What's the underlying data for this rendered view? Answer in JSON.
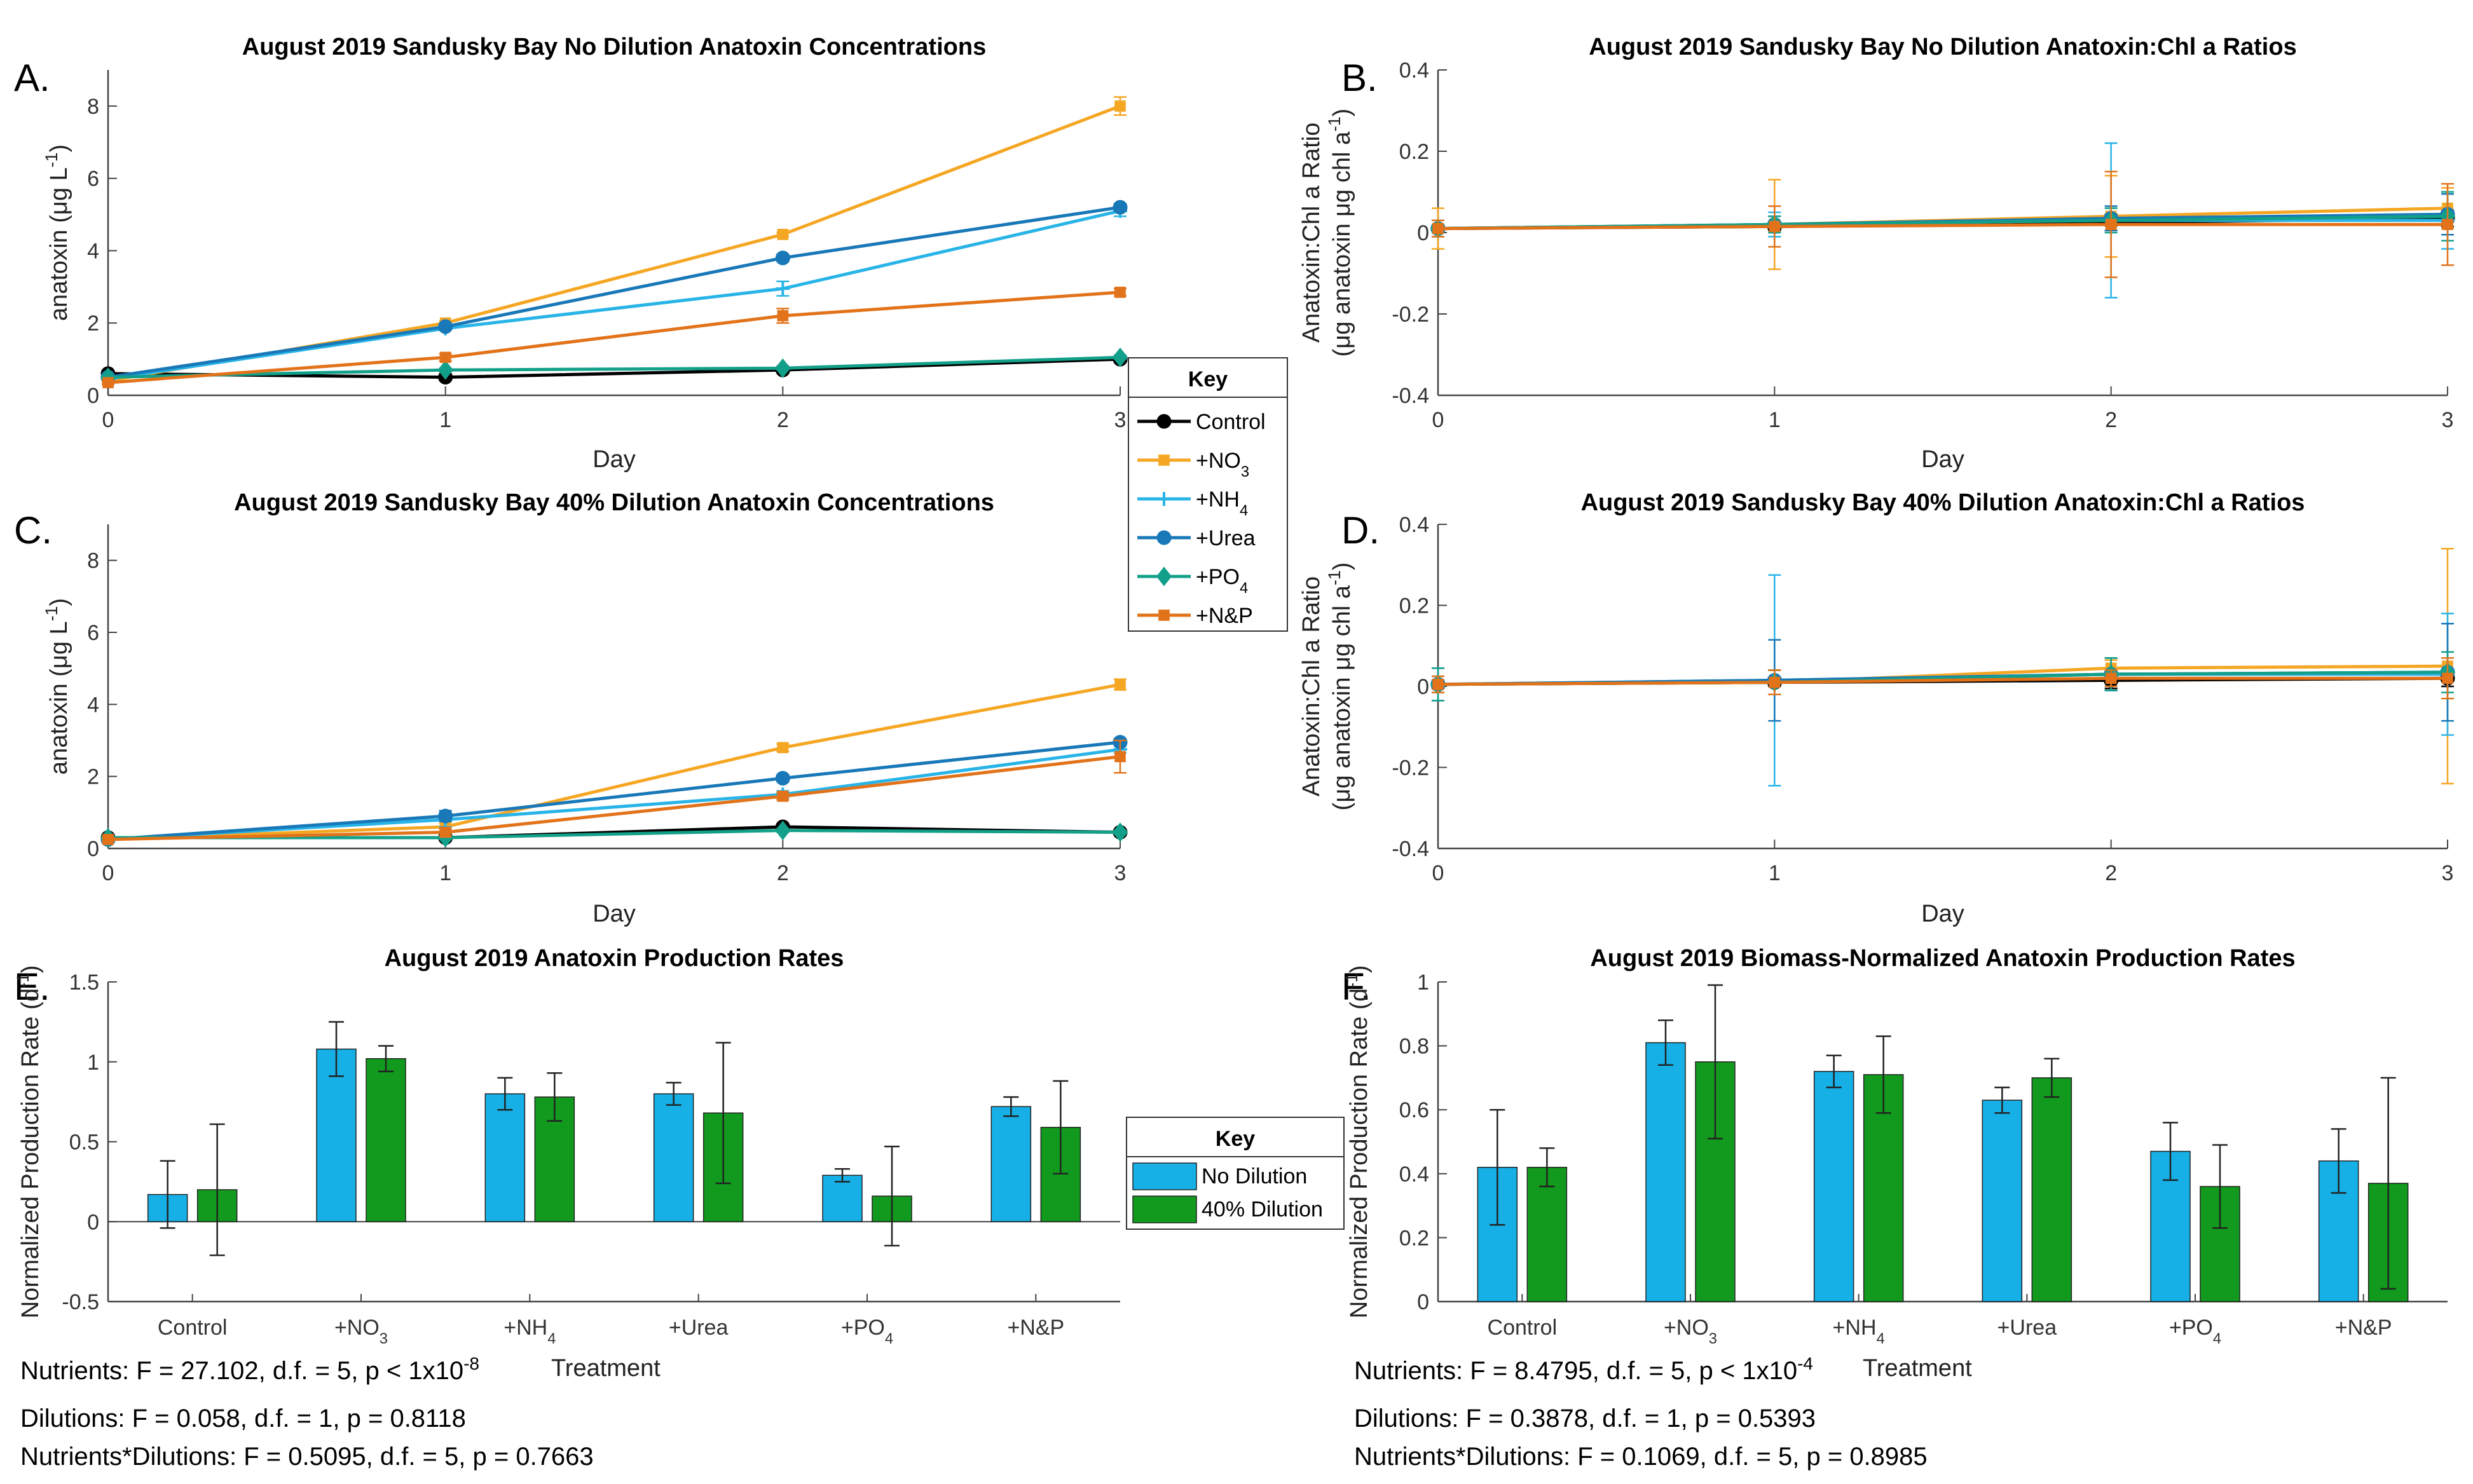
{
  "colors": {
    "Control": "#000000",
    "+NO3": "#f5a623",
    "+NH4": "#29b4e8",
    "+Urea": "#1878b8",
    "+PO4": "#13a08a",
    "+N&P": "#e2731a",
    "no_dilution_bar": "#16b0e6",
    "dilution_bar": "#119a1e"
  },
  "line_legend": {
    "title": "Key",
    "entries": [
      {
        "key": "Control",
        "label": "Control",
        "sub": "",
        "marker": "circle"
      },
      {
        "key": "+NO3",
        "label": "+NO",
        "sub": "3",
        "marker": "square"
      },
      {
        "key": "+NH4",
        "label": "+NH",
        "sub": "4",
        "marker": "plus"
      },
      {
        "key": "+Urea",
        "label": "+Urea",
        "sub": "",
        "marker": "circle"
      },
      {
        "key": "+PO4",
        "label": "+PO",
        "sub": "4",
        "marker": "diamond"
      },
      {
        "key": "+N&P",
        "label": "+N&P",
        "sub": "",
        "marker": "square"
      }
    ]
  },
  "bar_legend": {
    "title": "Key",
    "entries": [
      {
        "key": "no_dilution_bar",
        "label": "No Dilution"
      },
      {
        "key": "dilution_bar",
        "label": "40% Dilution"
      }
    ]
  },
  "chart_data": [
    {
      "id": "A",
      "letter": "A.",
      "type": "line",
      "title": "August 2019 Sandusky Bay No Dilution Anatoxin Concentrations",
      "xlabel": "Day",
      "ylabel": "anatoxin (μg L",
      "ylabel_sup": "-1",
      "ylabel_end": ")",
      "x": [
        0,
        1,
        2,
        3
      ],
      "xlim": [
        0,
        3
      ],
      "ylim": [
        0,
        9
      ],
      "xticks": [
        "0",
        "1",
        "2",
        "3"
      ],
      "yticks": [
        "0",
        "2",
        "4",
        "6",
        "8"
      ],
      "ytick_values": [
        0,
        2,
        4,
        6,
        8
      ],
      "series": [
        {
          "name": "Control",
          "values": [
            0.6,
            0.5,
            0.7,
            1.0
          ],
          "err": [
            0.05,
            0.05,
            0.05,
            0.05
          ]
        },
        {
          "name": "+NO3",
          "values": [
            0.4,
            2.0,
            4.45,
            8.0
          ],
          "err": [
            0.05,
            0.05,
            0.05,
            0.25
          ]
        },
        {
          "name": "+NH4",
          "values": [
            0.45,
            1.85,
            2.95,
            5.1
          ],
          "err": [
            0.05,
            0.05,
            0.2,
            0.15
          ]
        },
        {
          "name": "+Urea",
          "values": [
            0.5,
            1.9,
            3.8,
            5.2
          ],
          "err": [
            0.05,
            0.05,
            0.1,
            0.1
          ]
        },
        {
          "name": "+PO4",
          "values": [
            0.5,
            0.7,
            0.75,
            1.05
          ],
          "err": [
            0.05,
            0.05,
            0.05,
            0.05
          ]
        },
        {
          "name": "+N&P",
          "values": [
            0.35,
            1.05,
            2.2,
            2.85
          ],
          "err": [
            0.05,
            0.1,
            0.2,
            0.1
          ]
        }
      ]
    },
    {
      "id": "B",
      "letter": "B.",
      "type": "line",
      "title": "August 2019 Sandusky Bay No Dilution Anatoxin:Chl a Ratios",
      "xlabel": "Day",
      "ylabel": "Anatoxin:Chl a Ratio",
      "ylabel2": "(μg anatoxin μg chl a",
      "ylabel2_sup": "-1",
      "ylabel2_end": ")",
      "x": [
        0,
        1,
        2,
        3
      ],
      "xlim": [
        0,
        3
      ],
      "ylim": [
        -0.4,
        0.4
      ],
      "xticks": [
        "0",
        "1",
        "2",
        "3"
      ],
      "yticks": [
        "-0.4",
        "-0.2",
        "0",
        "0.2",
        "0.4"
      ],
      "ytick_values": [
        -0.4,
        -0.2,
        0,
        0.2,
        0.4
      ],
      "series": [
        {
          "name": "Control",
          "values": [
            0.01,
            0.015,
            0.025,
            0.035
          ],
          "err": [
            0.01,
            0.01,
            0.02,
            0.02
          ]
        },
        {
          "name": "+NO3",
          "values": [
            0.01,
            0.02,
            0.04,
            0.06
          ],
          "err": [
            0.05,
            0.11,
            0.1,
            0.05
          ]
        },
        {
          "name": "+NH4",
          "values": [
            0.01,
            0.02,
            0.03,
            0.03
          ],
          "err": [
            0.02,
            0.03,
            0.19,
            0.07
          ]
        },
        {
          "name": "+Urea",
          "values": [
            0.01,
            0.02,
            0.035,
            0.045
          ],
          "err": [
            0.01,
            0.02,
            0.03,
            0.05
          ]
        },
        {
          "name": "+PO4",
          "values": [
            0.01,
            0.02,
            0.03,
            0.04
          ],
          "err": [
            0.01,
            0.02,
            0.03,
            0.06
          ]
        },
        {
          "name": "+N&P",
          "values": [
            0.01,
            0.015,
            0.02,
            0.02
          ],
          "err": [
            0.02,
            0.05,
            0.13,
            0.1
          ]
        }
      ]
    },
    {
      "id": "C",
      "letter": "C.",
      "type": "line",
      "title": "August 2019 Sandusky Bay 40% Dilution Anatoxin Concentrations",
      "xlabel": "Day",
      "ylabel": "anatoxin (μg L",
      "ylabel_sup": "-1",
      "ylabel_end": ")",
      "x": [
        0,
        1,
        2,
        3
      ],
      "xlim": [
        0,
        3
      ],
      "ylim": [
        0,
        9
      ],
      "xticks": [
        "0",
        "1",
        "2",
        "3"
      ],
      "yticks": [
        "0",
        "2",
        "4",
        "6",
        "8"
      ],
      "ytick_values": [
        0,
        2,
        4,
        6,
        8
      ],
      "series": [
        {
          "name": "Control",
          "values": [
            0.3,
            0.3,
            0.6,
            0.45
          ],
          "err": [
            0.05,
            0.05,
            0.05,
            0.05
          ]
        },
        {
          "name": "+NO3",
          "values": [
            0.25,
            0.6,
            2.8,
            4.55
          ],
          "err": [
            0.05,
            0.1,
            0.1,
            0.15
          ]
        },
        {
          "name": "+NH4",
          "values": [
            0.25,
            0.8,
            1.5,
            2.75
          ],
          "err": [
            0.05,
            0.2,
            0.1,
            0.1
          ]
        },
        {
          "name": "+Urea",
          "values": [
            0.25,
            0.9,
            1.95,
            2.95
          ],
          "err": [
            0.05,
            0.15,
            0.1,
            0.1
          ]
        },
        {
          "name": "+PO4",
          "values": [
            0.3,
            0.3,
            0.5,
            0.45
          ],
          "err": [
            0.05,
            0.05,
            0.05,
            0.05
          ]
        },
        {
          "name": "+N&P",
          "values": [
            0.25,
            0.45,
            1.45,
            2.55
          ],
          "err": [
            0.05,
            0.1,
            0.1,
            0.45
          ]
        }
      ]
    },
    {
      "id": "D",
      "letter": "D.",
      "type": "line",
      "title": "August 2019 Sandusky Bay 40% Dilution Anatoxin:Chl a Ratios",
      "xlabel": "Day",
      "ylabel": "Anatoxin:Chl a Ratio",
      "ylabel2": "(μg anatoxin μg chl a",
      "ylabel2_sup": "-1",
      "ylabel2_end": ")",
      "x": [
        0,
        1,
        2,
        3
      ],
      "xlim": [
        0,
        3
      ],
      "ylim": [
        -0.4,
        0.4
      ],
      "xticks": [
        "0",
        "1",
        "2",
        "3"
      ],
      "yticks": [
        "-0.4",
        "-0.2",
        "0",
        "0.2",
        "0.4"
      ],
      "ytick_values": [
        -0.4,
        -0.2,
        0,
        0.2,
        0.4
      ],
      "series": [
        {
          "name": "Control",
          "values": [
            0.005,
            0.01,
            0.015,
            0.02
          ],
          "err": [
            0.01,
            0.01,
            0.02,
            0.02
          ]
        },
        {
          "name": "+NO3",
          "values": [
            0.005,
            0.01,
            0.045,
            0.05
          ],
          "err": [
            0.02,
            0.03,
            0.02,
            0.29
          ]
        },
        {
          "name": "+NH4",
          "values": [
            0.005,
            0.015,
            0.03,
            0.03
          ],
          "err": [
            0.04,
            0.26,
            0.04,
            0.15
          ]
        },
        {
          "name": "+Urea",
          "values": [
            0.005,
            0.015,
            0.03,
            0.035
          ],
          "err": [
            0.02,
            0.1,
            0.04,
            0.12
          ]
        },
        {
          "name": "+PO4",
          "values": [
            0.005,
            0.01,
            0.03,
            0.035
          ],
          "err": [
            0.04,
            0.03,
            0.04,
            0.05
          ]
        },
        {
          "name": "+N&P",
          "values": [
            0.005,
            0.01,
            0.02,
            0.02
          ],
          "err": [
            0.02,
            0.03,
            0.02,
            0.05
          ]
        }
      ]
    },
    {
      "id": "E",
      "letter": "E.",
      "type": "bar",
      "title": "August 2019 Anatoxin Production Rates",
      "xlabel": "Treatment",
      "ylabel": "Normalized Production Rate (d",
      "ylabel_sup": "-1",
      "ylabel_end": ")",
      "categories": [
        {
          "label": "Control",
          "sub": ""
        },
        {
          "label": "+NO",
          "sub": "3"
        },
        {
          "label": "+NH",
          "sub": "4"
        },
        {
          "label": "+Urea",
          "sub": ""
        },
        {
          "label": "+PO",
          "sub": "4"
        },
        {
          "label": "+N&P",
          "sub": ""
        }
      ],
      "ylim": [
        -0.5,
        1.5
      ],
      "yticks": [
        "-0.5",
        "0",
        "0.5",
        "1",
        "1.5"
      ],
      "ytick_values": [
        -0.5,
        0,
        0.5,
        1,
        1.5
      ],
      "series": [
        {
          "name": "No Dilution",
          "key": "no_dilution_bar",
          "values": [
            0.17,
            1.08,
            0.8,
            0.8,
            0.29,
            0.72
          ],
          "err": [
            0.21,
            0.17,
            0.1,
            0.07,
            0.04,
            0.06
          ]
        },
        {
          "name": "40% Dilution",
          "key": "dilution_bar",
          "values": [
            0.2,
            1.02,
            0.78,
            0.68,
            0.16,
            0.59
          ],
          "err": [
            0.41,
            0.08,
            0.15,
            0.44,
            0.31,
            0.29
          ]
        }
      ],
      "stats": {
        "line1_pre": "Nutrients: F = 27.102, d.f. = 5, p < 1x10",
        "line1_sup": "-8",
        "line2": "Dilutions: F = 0.058, d.f. = 1, p = 0.8118",
        "line3": "Nutrients*Dilutions: F = 0.5095, d.f. = 5, p = 0.7663"
      }
    },
    {
      "id": "F",
      "letter": "F.",
      "type": "bar",
      "title": "August 2019 Biomass-Normalized Anatoxin Production Rates",
      "xlabel": "Treatment",
      "ylabel": "Normalized Production Rate (d",
      "ylabel_sup": "-1",
      "ylabel_end": ")",
      "categories": [
        {
          "label": "Control",
          "sub": ""
        },
        {
          "label": "+NO",
          "sub": "3"
        },
        {
          "label": "+NH",
          "sub": "4"
        },
        {
          "label": "+Urea",
          "sub": ""
        },
        {
          "label": "+PO",
          "sub": "4"
        },
        {
          "label": "+N&P",
          "sub": ""
        }
      ],
      "ylim": [
        0,
        1
      ],
      "yticks": [
        "0",
        "0.2",
        "0.4",
        "0.6",
        "0.8",
        "1"
      ],
      "ytick_values": [
        0,
        0.2,
        0.4,
        0.6,
        0.8,
        1
      ],
      "series": [
        {
          "name": "No Dilution",
          "key": "no_dilution_bar",
          "values": [
            0.42,
            0.81,
            0.72,
            0.63,
            0.47,
            0.44
          ],
          "err": [
            0.18,
            0.07,
            0.05,
            0.04,
            0.09,
            0.1
          ]
        },
        {
          "name": "40% Dilution",
          "key": "dilution_bar",
          "values": [
            0.42,
            0.75,
            0.71,
            0.7,
            0.36,
            0.37
          ],
          "err": [
            0.06,
            0.24,
            0.12,
            0.06,
            0.13,
            0.33
          ]
        }
      ],
      "stats": {
        "line1_pre": "Nutrients: F = 8.4795, d.f. = 5, p < 1x10",
        "line1_sup": "-4",
        "line2": "Dilutions: F = 0.3878, d.f. = 1, p = 0.5393",
        "line3": "Nutrients*Dilutions: F = 0.1069, d.f. = 5, p = 0.8985"
      }
    }
  ]
}
